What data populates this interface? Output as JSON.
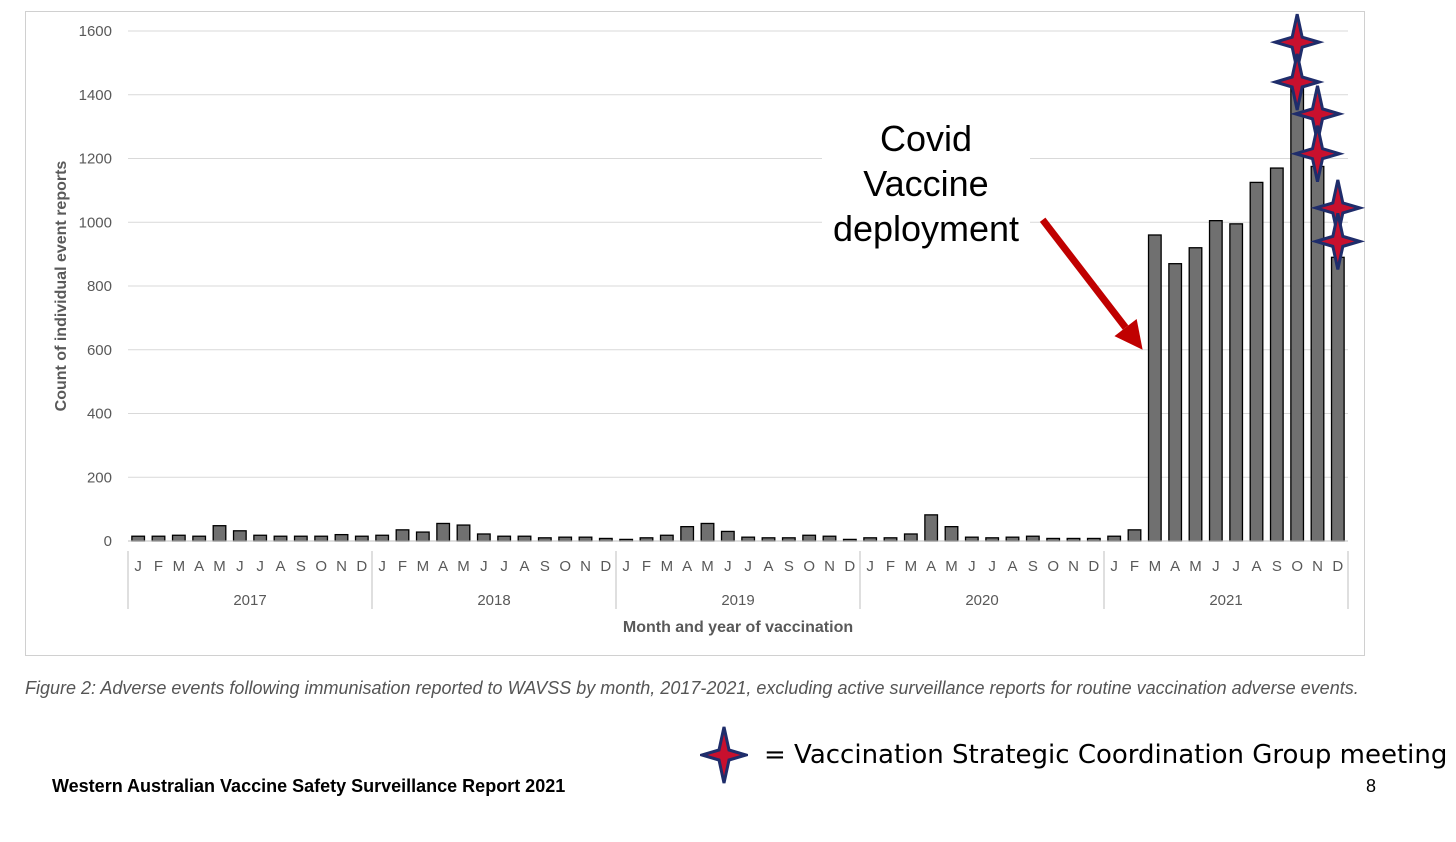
{
  "chart_data": {
    "type": "bar",
    "title": "",
    "xlabel": "Month and year of vaccination",
    "ylabel": "Count of individual event reports",
    "ylim": [
      0,
      1600
    ],
    "yticks": [
      0,
      200,
      400,
      600,
      800,
      1000,
      1200,
      1400,
      1600
    ],
    "grid": true,
    "bar_color": "#707070",
    "years": [
      {
        "label": "2017",
        "months": [
          "J",
          "F",
          "M",
          "A",
          "M",
          "J",
          "J",
          "A",
          "S",
          "O",
          "N",
          "D"
        ],
        "values": [
          15,
          15,
          18,
          15,
          48,
          32,
          18,
          15,
          15,
          15,
          20,
          15
        ]
      },
      {
        "label": "2018",
        "months": [
          "J",
          "F",
          "M",
          "A",
          "M",
          "J",
          "J",
          "A",
          "S",
          "O",
          "N",
          "D"
        ],
        "values": [
          18,
          35,
          28,
          55,
          50,
          22,
          15,
          15,
          10,
          12,
          12,
          8
        ]
      },
      {
        "label": "2019",
        "months": [
          "J",
          "F",
          "M",
          "A",
          "M",
          "J",
          "J",
          "A",
          "S",
          "O",
          "N",
          "D"
        ],
        "values": [
          5,
          10,
          18,
          45,
          55,
          30,
          12,
          10,
          10,
          18,
          15,
          5
        ]
      },
      {
        "label": "2020",
        "months": [
          "J",
          "F",
          "M",
          "A",
          "M",
          "J",
          "J",
          "A",
          "S",
          "O",
          "N",
          "D"
        ],
        "values": [
          10,
          10,
          22,
          82,
          45,
          12,
          10,
          12,
          15,
          8,
          8,
          8
        ]
      },
      {
        "label": "2021",
        "months": [
          "J",
          "F",
          "M",
          "A",
          "M",
          "J",
          "J",
          "A",
          "S",
          "O",
          "N",
          "D"
        ],
        "values": [
          15,
          35,
          960,
          870,
          920,
          1005,
          995,
          1125,
          1170,
          1440,
          1175,
          890
        ]
      }
    ],
    "annotation": {
      "lines": [
        "Covid",
        "Vaccine",
        "deployment"
      ],
      "points_to": {
        "year": "2021",
        "month": "M"
      },
      "arrow_color": "#c00000"
    },
    "markers": {
      "color_fill": "#c8102e",
      "color_edge": "#1f2d6b",
      "points": [
        {
          "year": "2021",
          "month_index": 9,
          "value": 1565
        },
        {
          "year": "2021",
          "month_index": 9,
          "value": 1440
        },
        {
          "year": "2021",
          "month_index": 10,
          "value": 1340
        },
        {
          "year": "2021",
          "month_index": 10,
          "value": 1215
        },
        {
          "year": "2021",
          "month_index": 11,
          "value": 1045
        },
        {
          "year": "2021",
          "month_index": 11,
          "value": 940
        }
      ]
    }
  },
  "caption": "Figure 2: Adverse events following immunisation reported to WAVSS by month, 2017-2021, excluding active surveillance reports for routine vaccination adverse events.",
  "legend": {
    "label": "= Vaccination Strategic Coordination Group meeting",
    "icon": "four-point-star-icon"
  },
  "footer": {
    "title": "Western Australian Vaccine Safety Surveillance Report 2021",
    "page_number": "8"
  }
}
